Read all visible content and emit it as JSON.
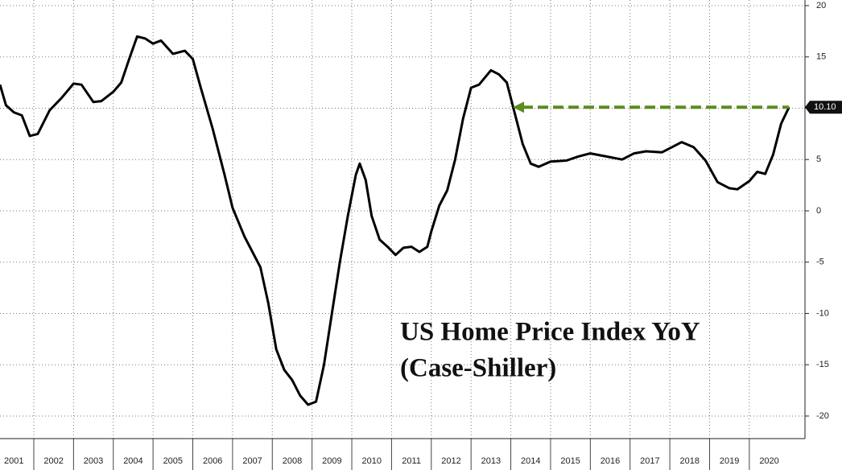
{
  "chart_data": {
    "type": "line",
    "title": "US Home Price Index YoY",
    "subtitle": "(Case-Shiller)",
    "x": [
      2001.15,
      2001.3,
      2001.5,
      2001.7,
      2001.9,
      2002.1,
      2002.4,
      2002.7,
      2003.0,
      2003.2,
      2003.5,
      2003.7,
      2004.0,
      2004.2,
      2004.4,
      2004.6,
      2004.8,
      2005.0,
      2005.2,
      2005.5,
      2005.8,
      2006.0,
      2006.2,
      2006.5,
      2006.8,
      2007.0,
      2007.3,
      2007.5,
      2007.7,
      2007.9,
      2008.1,
      2008.3,
      2008.5,
      2008.7,
      2008.9,
      2009.1,
      2009.3,
      2009.5,
      2009.7,
      2009.9,
      2010.1,
      2010.2,
      2010.35,
      2010.5,
      2010.7,
      2010.9,
      2011.1,
      2011.3,
      2011.5,
      2011.7,
      2011.9,
      2012.0,
      2012.2,
      2012.4,
      2012.6,
      2012.8,
      2013.0,
      2013.2,
      2013.5,
      2013.7,
      2013.9,
      2014.1,
      2014.3,
      2014.5,
      2014.7,
      2015.0,
      2015.4,
      2015.7,
      2016.0,
      2016.4,
      2016.8,
      2017.1,
      2017.4,
      2017.8,
      2018.1,
      2018.3,
      2018.6,
      2018.9,
      2019.2,
      2019.5,
      2019.7,
      2020.0,
      2020.2,
      2020.4,
      2020.6,
      2020.8,
      2021.0
    ],
    "series": [
      {
        "name": "US Home Price Index YoY",
        "color": "#000000",
        "values": [
          12.3,
          10.3,
          9.6,
          9.3,
          7.3,
          7.5,
          9.8,
          11.0,
          12.4,
          12.3,
          10.6,
          10.7,
          11.6,
          12.5,
          14.8,
          17.0,
          16.8,
          16.3,
          16.6,
          15.3,
          15.6,
          14.8,
          12.0,
          8.0,
          3.5,
          0.3,
          -2.5,
          -4.0,
          -5.5,
          -9.0,
          -13.5,
          -15.5,
          -16.5,
          -18.0,
          -18.9,
          -18.6,
          -15.0,
          -10.0,
          -5.0,
          -0.5,
          3.5,
          4.6,
          3.0,
          -0.5,
          -2.8,
          -3.5,
          -4.3,
          -3.6,
          -3.5,
          -4.0,
          -3.5,
          -2.0,
          0.5,
          2.0,
          5.0,
          9.0,
          12.0,
          12.3,
          13.7,
          13.3,
          12.5,
          9.5,
          6.5,
          4.6,
          4.3,
          4.8,
          4.9,
          5.3,
          5.6,
          5.3,
          5.0,
          5.6,
          5.8,
          5.7,
          6.3,
          6.7,
          6.2,
          4.9,
          2.8,
          2.2,
          2.1,
          2.9,
          3.8,
          3.6,
          5.5,
          8.5,
          10.1
        ]
      }
    ],
    "xlim": [
      2001.15,
      2021.4
    ],
    "xticks": [
      2001,
      2002,
      2003,
      2004,
      2005,
      2006,
      2007,
      2008,
      2009,
      2010,
      2011,
      2012,
      2013,
      2014,
      2015,
      2016,
      2017,
      2018,
      2019,
      2020
    ],
    "ylim": [
      -22.2,
      20.55
    ],
    "yticks": [
      -20,
      -15,
      -10,
      -5,
      0,
      5,
      10,
      15,
      20
    ],
    "grid": true,
    "y_axis_side": "right",
    "last_value_label": {
      "value": 10.1,
      "label": "10.10"
    },
    "arrow": {
      "x": [
        2014.05,
        2021.0
      ],
      "y": 10.1,
      "color": "#5b8c1e"
    }
  }
}
